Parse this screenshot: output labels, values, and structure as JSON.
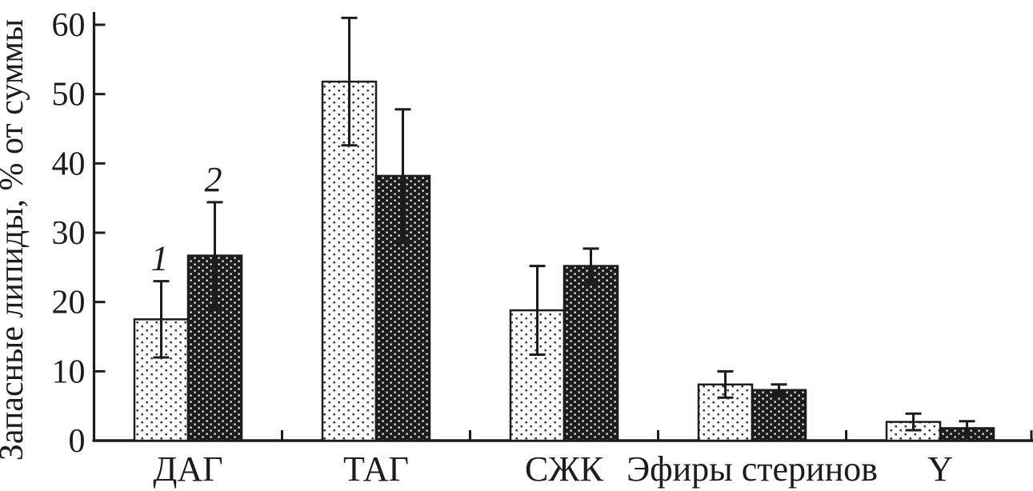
{
  "chart_data": {
    "type": "bar",
    "title": "",
    "xlabel": "",
    "ylabel": "Запасные липиды, % от суммы",
    "categories": [
      "ДАГ",
      "ТАГ",
      "СЖК",
      "Эфиры стеринов",
      "Y"
    ],
    "series": [
      {
        "name": "1",
        "style": "light-dotted",
        "values": [
          17.5,
          51.8,
          18.8,
          8.1,
          2.7
        ],
        "errors": [
          5.5,
          9.2,
          6.4,
          1.9,
          1.2
        ]
      },
      {
        "name": "2",
        "style": "dark-dotted",
        "values": [
          26.7,
          38.2,
          25.2,
          7.3,
          1.8
        ],
        "errors": [
          7.7,
          9.6,
          2.5,
          0.8,
          1.0
        ]
      }
    ],
    "yticks": [
      0,
      10,
      20,
      30,
      40,
      50,
      60
    ],
    "ylim": [
      0,
      61
    ],
    "grid": false,
    "error_bars": true,
    "legend_position": "italic series labels 1 and 2 above bars of first category",
    "colors": {
      "ink": "#1c1c1c",
      "background": "#ffffff",
      "light_bar_bg": "#ffffff",
      "light_bar_dot": "#2a2a2a",
      "dark_bar_bg": "#1c1c1c",
      "dark_bar_dot": "#ffffff"
    }
  }
}
